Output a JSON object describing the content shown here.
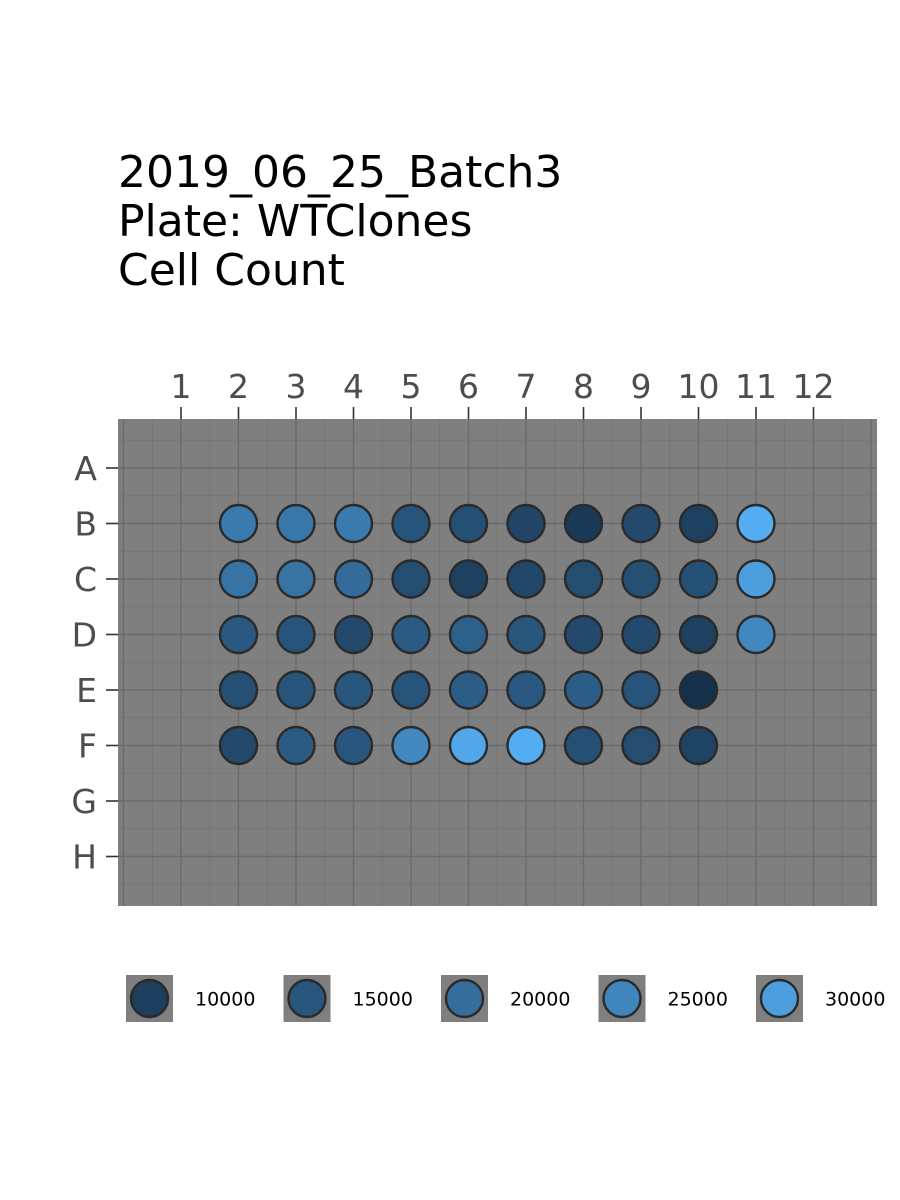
{
  "title": {
    "line1": "2019_06_25_Batch3",
    "line2": "Plate: WTClones",
    "line3": "Cell Count"
  },
  "chart_data": {
    "type": "scatter",
    "subtype": "plate-map",
    "columns": [
      "1",
      "2",
      "3",
      "4",
      "5",
      "6",
      "7",
      "8",
      "9",
      "10",
      "11",
      "12"
    ],
    "rows": [
      "A",
      "B",
      "C",
      "D",
      "E",
      "F",
      "G",
      "H"
    ],
    "x_axis_position": "top",
    "panel_color": "#7f7f7f",
    "grid": true,
    "legend": {
      "placement": "bottom",
      "title": "",
      "entries": [
        {
          "label": "10000",
          "value": 10000
        },
        {
          "label": "15000",
          "value": 15000
        },
        {
          "label": "20000",
          "value": 20000
        },
        {
          "label": "25000",
          "value": 25000
        },
        {
          "label": "30000",
          "value": 30000
        }
      ]
    },
    "color_scale": {
      "low": "#132B43",
      "high": "#56B1F7",
      "min": 6000,
      "max": 34000
    },
    "wells": [
      {
        "row": "B",
        "col": 2,
        "value": 22500
      },
      {
        "row": "B",
        "col": 3,
        "value": 22000
      },
      {
        "row": "B",
        "col": 4,
        "value": 22500
      },
      {
        "row": "B",
        "col": 5,
        "value": 14500
      },
      {
        "row": "B",
        "col": 6,
        "value": 13500
      },
      {
        "row": "B",
        "col": 7,
        "value": 11500
      },
      {
        "row": "B",
        "col": 8,
        "value": 9000
      },
      {
        "row": "B",
        "col": 9,
        "value": 12500
      },
      {
        "row": "B",
        "col": 10,
        "value": 10500
      },
      {
        "row": "B",
        "col": 11,
        "value": 33000
      },
      {
        "row": "C",
        "col": 2,
        "value": 21000
      },
      {
        "row": "C",
        "col": 3,
        "value": 21000
      },
      {
        "row": "C",
        "col": 4,
        "value": 19500
      },
      {
        "row": "C",
        "col": 5,
        "value": 13000
      },
      {
        "row": "C",
        "col": 6,
        "value": 10500
      },
      {
        "row": "C",
        "col": 7,
        "value": 12000
      },
      {
        "row": "C",
        "col": 8,
        "value": 13000
      },
      {
        "row": "C",
        "col": 9,
        "value": 13500
      },
      {
        "row": "C",
        "col": 10,
        "value": 14000
      },
      {
        "row": "C",
        "col": 11,
        "value": 30000
      },
      {
        "row": "D",
        "col": 2,
        "value": 15500
      },
      {
        "row": "D",
        "col": 3,
        "value": 14500
      },
      {
        "row": "D",
        "col": 4,
        "value": 12500
      },
      {
        "row": "D",
        "col": 5,
        "value": 16000
      },
      {
        "row": "D",
        "col": 6,
        "value": 17000
      },
      {
        "row": "D",
        "col": 7,
        "value": 15000
      },
      {
        "row": "D",
        "col": 8,
        "value": 12500
      },
      {
        "row": "D",
        "col": 9,
        "value": 12500
      },
      {
        "row": "D",
        "col": 10,
        "value": 10500
      },
      {
        "row": "D",
        "col": 11,
        "value": 25500
      },
      {
        "row": "E",
        "col": 2,
        "value": 13500
      },
      {
        "row": "E",
        "col": 3,
        "value": 14500
      },
      {
        "row": "E",
        "col": 4,
        "value": 15000
      },
      {
        "row": "E",
        "col": 5,
        "value": 14500
      },
      {
        "row": "E",
        "col": 6,
        "value": 16500
      },
      {
        "row": "E",
        "col": 7,
        "value": 15500
      },
      {
        "row": "E",
        "col": 8,
        "value": 16500
      },
      {
        "row": "E",
        "col": 9,
        "value": 14500
      },
      {
        "row": "E",
        "col": 10,
        "value": 7000
      },
      {
        "row": "F",
        "col": 2,
        "value": 12500
      },
      {
        "row": "F",
        "col": 3,
        "value": 16000
      },
      {
        "row": "F",
        "col": 4,
        "value": 15000
      },
      {
        "row": "F",
        "col": 5,
        "value": 25500
      },
      {
        "row": "F",
        "col": 6,
        "value": 32000
      },
      {
        "row": "F",
        "col": 7,
        "value": 33000
      },
      {
        "row": "F",
        "col": 8,
        "value": 13500
      },
      {
        "row": "F",
        "col": 9,
        "value": 13000
      },
      {
        "row": "F",
        "col": 10,
        "value": 11000
      }
    ]
  }
}
